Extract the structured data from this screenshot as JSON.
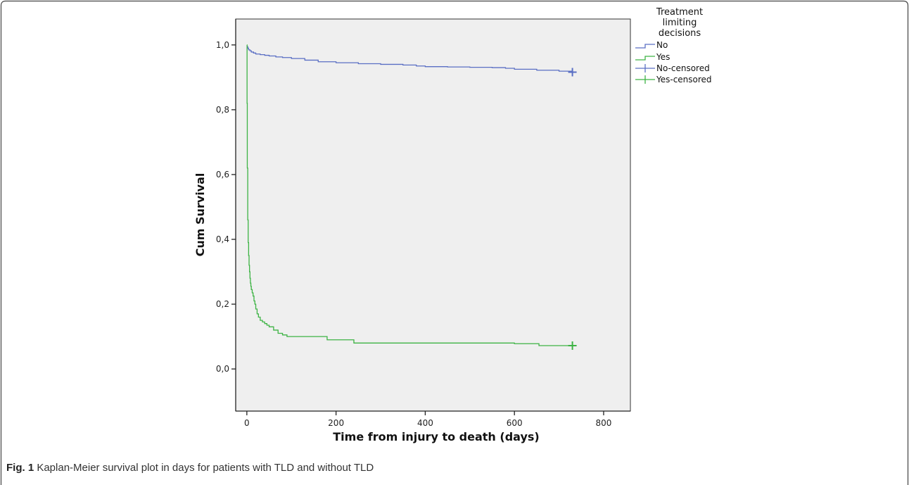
{
  "caption": {
    "label": "Fig. 1",
    "text": " Kaplan-Meier survival plot in days for patients with TLD and without TLD"
  },
  "chart_data": {
    "type": "line",
    "step": true,
    "xlabel": "Time from injury to death (days)",
    "ylabel": "Cum Survival",
    "xlim": [
      -25,
      860
    ],
    "ylim": [
      -0.13,
      1.08
    ],
    "x_ticks": [
      0,
      200,
      400,
      600,
      800
    ],
    "x_tick_labels": [
      "0",
      "200",
      "400",
      "600",
      "800"
    ],
    "y_ticks": [
      0.0,
      0.2,
      0.4,
      0.6,
      0.8,
      1.0
    ],
    "y_tick_labels": [
      "0,0",
      "0,2",
      "0,4",
      "0,6",
      "0,8",
      "1,0"
    ],
    "grid": false,
    "plot_background": "#efefef",
    "legend": {
      "title_lines": [
        "Treatment",
        "limiting",
        "decisions"
      ],
      "placement": "right-outside-top",
      "entries": [
        {
          "label": "No",
          "series": "No",
          "kind": "line"
        },
        {
          "label": "Yes",
          "series": "Yes",
          "kind": "line"
        },
        {
          "label": "No-censored",
          "series": "No",
          "kind": "censored"
        },
        {
          "label": "Yes-censored",
          "series": "Yes",
          "kind": "censored"
        }
      ]
    },
    "series": [
      {
        "name": "No",
        "color": "#5a6fc4",
        "x": [
          0,
          2,
          4,
          7,
          10,
          15,
          20,
          30,
          40,
          50,
          65,
          80,
          100,
          130,
          160,
          200,
          250,
          300,
          350,
          380,
          400,
          450,
          500,
          550,
          580,
          600,
          650,
          700,
          730
        ],
        "y": [
          0.995,
          0.99,
          0.985,
          0.982,
          0.978,
          0.975,
          0.972,
          0.97,
          0.968,
          0.966,
          0.963,
          0.961,
          0.958,
          0.953,
          0.948,
          0.945,
          0.942,
          0.94,
          0.938,
          0.935,
          0.933,
          0.932,
          0.931,
          0.93,
          0.928,
          0.925,
          0.922,
          0.919,
          0.916
        ],
        "censored": [
          {
            "x": 730,
            "y": 0.916
          }
        ]
      },
      {
        "name": "Yes",
        "color": "#3db344",
        "x": [
          0,
          0.5,
          1,
          2,
          3,
          4,
          5,
          6,
          7,
          8,
          9,
          10,
          12,
          14,
          16,
          18,
          20,
          23,
          26,
          30,
          35,
          40,
          45,
          50,
          60,
          70,
          80,
          90,
          120,
          180,
          240,
          300,
          400,
          500,
          600,
          655,
          730
        ],
        "y": [
          1.0,
          0.82,
          0.62,
          0.46,
          0.39,
          0.35,
          0.32,
          0.3,
          0.28,
          0.265,
          0.255,
          0.245,
          0.235,
          0.225,
          0.21,
          0.2,
          0.185,
          0.17,
          0.16,
          0.15,
          0.145,
          0.14,
          0.135,
          0.13,
          0.12,
          0.11,
          0.105,
          0.1,
          0.1,
          0.09,
          0.08,
          0.08,
          0.08,
          0.08,
          0.078,
          0.072,
          0.072
        ],
        "censored": [
          {
            "x": 730,
            "y": 0.072
          }
        ]
      }
    ]
  }
}
